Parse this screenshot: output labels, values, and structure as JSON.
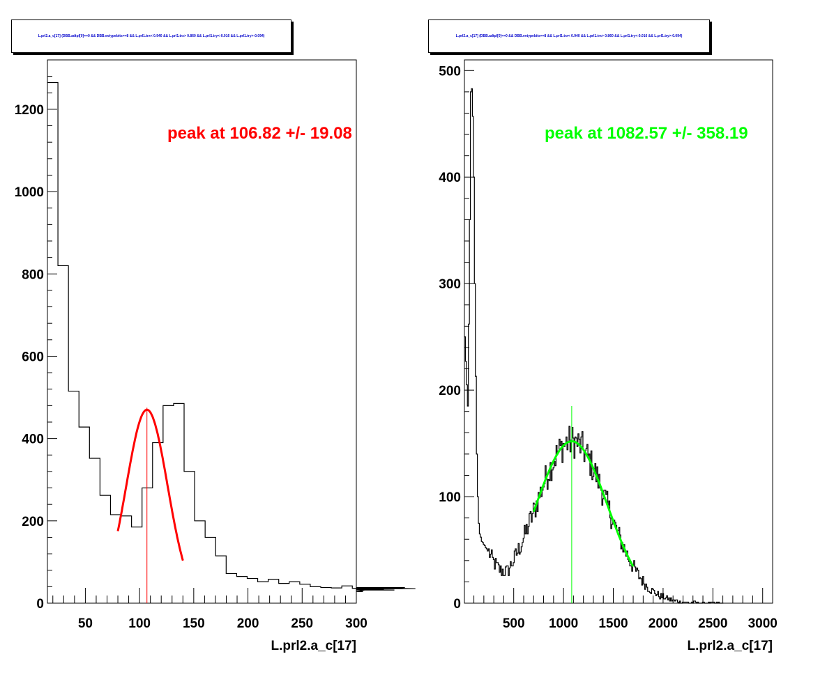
{
  "colors": {
    "hist": "#000000",
    "fit_left": "#ff0000",
    "fit_right": "#00ff00",
    "title_text": "#0000cc"
  },
  "chart_data": [
    {
      "type": "histogram",
      "title": "L.prl2.a_c[17] (DBB.adtpl[0]==0 && DBB.evtypebits==8 &&  L.prl1.trx< 0.940 && L.prl1.trx> 0.860 && L.prl1.try<-0.016 && L.prl1.try>-0.094)",
      "xlabel": "L.prl2.a_c[17]",
      "xlim": [
        15,
        300
      ],
      "ylim": [
        0,
        1320
      ],
      "x_ticks": [
        50,
        100,
        150,
        200,
        250,
        300
      ],
      "y_ticks": [
        0,
        200,
        400,
        600,
        800,
        1000,
        1200
      ],
      "bin_width": 9.7,
      "bin_edges_start": 15,
      "counts": [
        1265,
        820,
        515,
        428,
        352,
        262,
        215,
        212,
        185,
        280,
        390,
        480,
        485,
        320,
        200,
        160,
        115,
        72,
        65,
        60,
        52,
        58,
        48,
        52,
        46,
        40,
        38,
        37,
        42,
        36,
        28,
        36,
        33,
        32,
        38,
        35
      ],
      "fit": {
        "mean": 106.82,
        "sigma": 19.08,
        "amplitude": 470,
        "range": [
          80,
          140
        ],
        "color": "#ff0000"
      },
      "annotation": "peak at 106.82 +/- 19.08",
      "peak_marker_x": 106.82
    },
    {
      "type": "histogram",
      "title": "L.prl2.a_c[17] (DBB.adtpl[0]==0 && DBB.evtypebits==8 &&  L.prl1.trx< 0.940 && L.prl1.trx> 0.860 && L.prl1.try<-0.016 && L.prl1.try>-0.094)",
      "xlabel": "L.prl2.a_c[17]",
      "xlim": [
        5,
        3100
      ],
      "ylim": [
        0,
        510
      ],
      "x_ticks": [
        500,
        1000,
        1500,
        2000,
        2500,
        3000
      ],
      "y_ticks": [
        0,
        100,
        200,
        300,
        400,
        500
      ],
      "profile": {
        "spike": [
          [
            10,
            250
          ],
          [
            25,
            215
          ],
          [
            40,
            185
          ],
          [
            55,
            300
          ],
          [
            70,
            480
          ],
          [
            85,
            485
          ],
          [
            100,
            400
          ],
          [
            115,
            250
          ],
          [
            130,
            140
          ],
          [
            145,
            80
          ],
          [
            160,
            65
          ],
          [
            180,
            58
          ],
          [
            200,
            55
          ]
        ],
        "valley": [
          [
            250,
            48
          ],
          [
            300,
            38
          ],
          [
            350,
            32
          ],
          [
            400,
            30
          ],
          [
            450,
            30
          ],
          [
            500,
            35
          ]
        ],
        "peak_mean": 1082.57,
        "peak_sigma": 358.19,
        "peak_amplitude": 152,
        "tail_end": 2600
      },
      "fit": {
        "mean": 1082.57,
        "sigma": 358.19,
        "amplitude": 152,
        "range": [
          700,
          1700
        ],
        "color": "#00ff00"
      },
      "annotation": "peak at 1082.57 +/- 358.19",
      "peak_marker_x": 1082.57
    }
  ]
}
